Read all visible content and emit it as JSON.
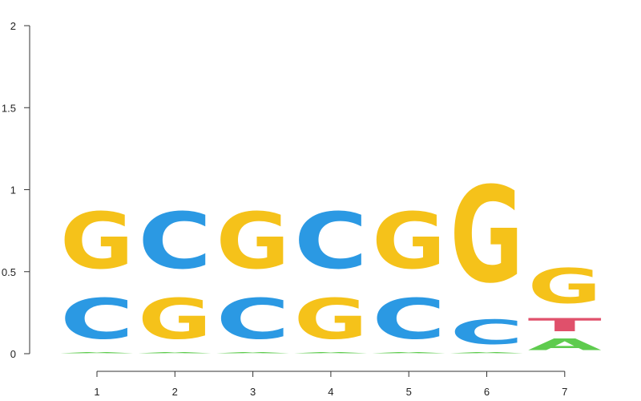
{
  "chart_data": {
    "type": "sequence-logo",
    "ylim": [
      0,
      2
    ],
    "y_ticks": [
      {
        "value": 0,
        "label": "0"
      },
      {
        "value": 0.5,
        "label": "0.5"
      },
      {
        "value": 1,
        "label": "1"
      },
      {
        "value": 1.5,
        "label": "1.5"
      },
      {
        "value": 2,
        "label": "2"
      }
    ],
    "positions": [
      "1",
      "2",
      "3",
      "4",
      "5",
      "6",
      "7"
    ],
    "colors": {
      "A": "#5ecb4e",
      "C": "#2b99e3",
      "G": "#f5c21a",
      "T": "#e0506b"
    },
    "stacks": [
      [
        {
          "letter": "A",
          "height": 0.01
        },
        {
          "letter": "C",
          "height": 0.4
        },
        {
          "letter": "G",
          "height": 0.55
        }
      ],
      [
        {
          "letter": "A",
          "height": 0.01
        },
        {
          "letter": "G",
          "height": 0.4
        },
        {
          "letter": "C",
          "height": 0.55
        }
      ],
      [
        {
          "letter": "A",
          "height": 0.01
        },
        {
          "letter": "C",
          "height": 0.4
        },
        {
          "letter": "G",
          "height": 0.55
        }
      ],
      [
        {
          "letter": "A",
          "height": 0.01
        },
        {
          "letter": "G",
          "height": 0.4
        },
        {
          "letter": "C",
          "height": 0.55
        }
      ],
      [
        {
          "letter": "A",
          "height": 0.01
        },
        {
          "letter": "C",
          "height": 0.4
        },
        {
          "letter": "G",
          "height": 0.55
        }
      ],
      [
        {
          "letter": "A",
          "height": 0.01
        },
        {
          "letter": "C",
          "height": 0.24
        },
        {
          "letter": "G",
          "height": 0.94
        }
      ],
      [
        {
          "letter": "A",
          "height": 0.11
        },
        {
          "letter": "T",
          "height": 0.13
        },
        {
          "letter": "G",
          "height": 0.34
        }
      ]
    ]
  }
}
